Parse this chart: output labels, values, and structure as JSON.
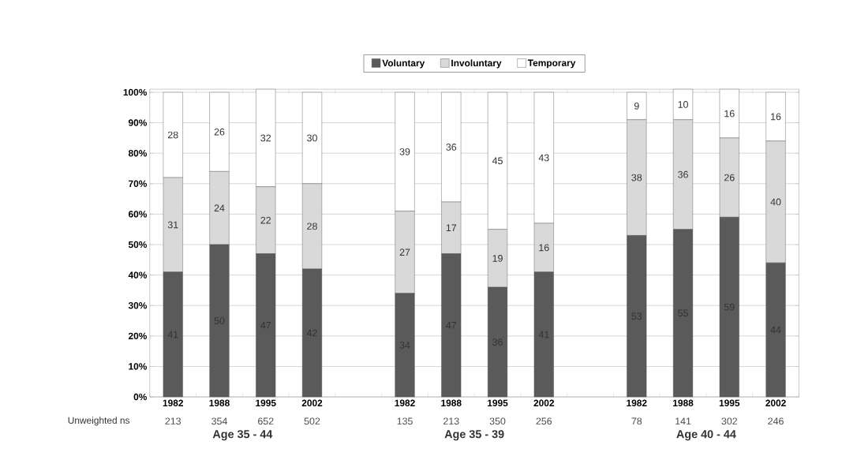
{
  "chart_data": {
    "type": "bar",
    "stacked": true,
    "categories": [
      "1982",
      "1988",
      "1995",
      "2002",
      null,
      "1982",
      "1988",
      "1995",
      "2002",
      null,
      "1982",
      "1988",
      "1995",
      "2002"
    ],
    "series": [
      {
        "name": "Voluntary",
        "color": "#5a5a5a",
        "values": [
          41,
          50,
          47,
          42,
          null,
          34,
          47,
          36,
          41,
          null,
          53,
          55,
          59,
          44
        ]
      },
      {
        "name": "Involuntary",
        "color": "#d9d9d9",
        "values": [
          31,
          24,
          22,
          28,
          null,
          27,
          17,
          19,
          16,
          null,
          38,
          36,
          26,
          40
        ]
      },
      {
        "name": "Temporary",
        "color": "#ffffff",
        "values": [
          28,
          26,
          32,
          30,
          null,
          39,
          36,
          45,
          43,
          null,
          9,
          10,
          16,
          16
        ]
      }
    ],
    "ylim": [
      0,
      101
    ],
    "yticks": [
      {
        "value": 0,
        "label": "0%"
      },
      {
        "value": 10,
        "label": "10%"
      },
      {
        "value": 20,
        "label": "20%"
      },
      {
        "value": 30,
        "label": "30%"
      },
      {
        "value": 40,
        "label": "40%"
      },
      {
        "value": 50,
        "label": "50%"
      },
      {
        "value": 60,
        "label": "60%"
      },
      {
        "value": 70,
        "label": "70%"
      },
      {
        "value": 80,
        "label": "80%"
      },
      {
        "value": 90,
        "label": "90%"
      },
      {
        "value": 100,
        "label": "100%"
      }
    ],
    "grid": "y",
    "legend": "top",
    "data_labels": true,
    "annotations": [
      "Unweighted ns",
      "213",
      "354",
      "652",
      "502",
      "135",
      "213",
      "350",
      "256",
      "78",
      "141",
      "302",
      "246",
      "Age 35 - 44",
      "Age 35 - 39",
      "Age 40 - 44"
    ]
  }
}
